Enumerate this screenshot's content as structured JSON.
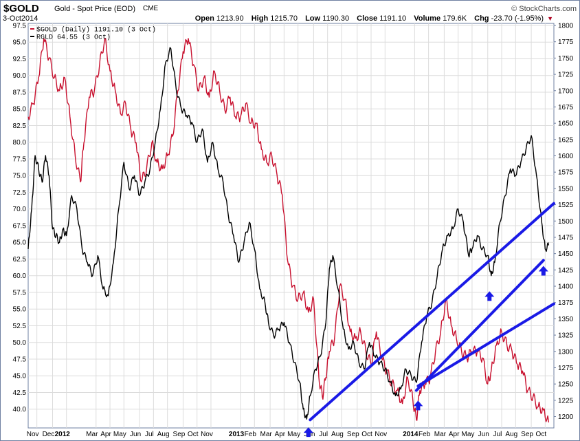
{
  "header": {
    "symbol": "$GOLD",
    "description": "Gold - Spot Price (EOD)",
    "exchange": "CME",
    "date": "3-Oct2014",
    "brand": "© StockCharts.com",
    "open_label": "Open",
    "open": "1213.90",
    "high_label": "High",
    "high": "1215.70",
    "low_label": "Low",
    "low": "1190.30",
    "close_label": "Close",
    "close": "1191.10",
    "volume_label": "Volume",
    "volume": "179.6K",
    "chg_label": "Chg",
    "chg": "-23.70 (-1.95%)"
  },
  "chart_data": {
    "type": "line",
    "legend_position": "top-left",
    "grid": true,
    "left_axis": {
      "ticks": [
        "97.5",
        "95.0",
        "92.5",
        "90.0",
        "87.5",
        "85.0",
        "82.5",
        "80.0",
        "77.5",
        "75.0",
        "72.5",
        "70.0",
        "67.5",
        "65.0",
        "62.5",
        "60.0",
        "57.5",
        "55.0",
        "52.5",
        "50.0",
        "47.5",
        "45.0",
        "42.5",
        "40.0"
      ],
      "range": [
        37.7,
        97.5
      ]
    },
    "right_axis": {
      "ticks": [
        "1800",
        "1775",
        "1750",
        "1725",
        "1700",
        "1675",
        "1650",
        "1625",
        "1600",
        "1575",
        "1550",
        "1525",
        "1500",
        "1475",
        "1450",
        "1425",
        "1400",
        "1375",
        "1350",
        "1325",
        "1300",
        "1275",
        "1250",
        "1225",
        "1200"
      ],
      "range": [
        1190,
        1800
      ]
    },
    "x_labels": [
      {
        "t": "Nov",
        "m": 2012.83
      },
      {
        "t": "Dec",
        "m": 2012.92
      },
      {
        "t": "2012",
        "m": 2013.0,
        "year": true
      },
      {
        "t": "Mar",
        "m": 2013.17
      },
      {
        "t": "Apr",
        "m": 2013.25
      },
      {
        "t": "May",
        "m": 2013.33
      },
      {
        "t": "Jun",
        "m": 2013.42
      },
      {
        "t": "Jul",
        "m": 2013.5
      },
      {
        "t": "Aug",
        "m": 2013.58
      },
      {
        "t": "Sep",
        "m": 2013.67
      },
      {
        "t": "Oct",
        "m": 2013.75
      },
      {
        "t": "Nov",
        "m": 2013.83
      },
      {
        "t": "2013",
        "m": 2014.0,
        "year": true
      },
      {
        "t": "Feb",
        "m": 2014.08
      },
      {
        "t": "Mar",
        "m": 2014.17
      },
      {
        "t": "Apr",
        "m": 2014.25
      },
      {
        "t": "May",
        "m": 2014.33
      },
      {
        "t": "Jun",
        "m": 2014.42
      },
      {
        "t": "Jul",
        "m": 2014.5
      },
      {
        "t": "Aug",
        "m": 2014.58
      },
      {
        "t": "Sep",
        "m": 2014.67
      },
      {
        "t": "Oct",
        "m": 2014.75
      },
      {
        "t": "Nov",
        "m": 2014.83
      },
      {
        "t": "2014",
        "m": 2015.0,
        "year": true
      },
      {
        "t": "Feb",
        "m": 2015.08
      },
      {
        "t": "Mar",
        "m": 2015.17
      },
      {
        "t": "Apr",
        "m": 2015.25
      },
      {
        "t": "May",
        "m": 2015.33
      },
      {
        "t": "Jun",
        "m": 2015.42
      },
      {
        "t": "Jul",
        "m": 2015.5
      },
      {
        "t": "Aug",
        "m": 2015.58
      },
      {
        "t": "Sep",
        "m": 2015.67
      },
      {
        "t": "Oct",
        "m": 2015.75
      }
    ],
    "x_range": [
      2012.78,
      2015.8
    ],
    "series": [
      {
        "name": "$GOLD (Daily) 1191.10 (3 Oct)",
        "color": "#c8102e",
        "axis": "right",
        "points": [
          [
            2012.78,
            1660
          ],
          [
            2012.81,
            1680
          ],
          [
            2012.84,
            1720
          ],
          [
            2012.87,
            1780
          ],
          [
            2012.9,
            1750
          ],
          [
            2012.93,
            1720
          ],
          [
            2012.96,
            1700
          ],
          [
            2012.99,
            1720
          ],
          [
            2013.02,
            1660
          ],
          [
            2013.05,
            1600
          ],
          [
            2013.08,
            1560
          ],
          [
            2013.1,
            1620
          ],
          [
            2013.13,
            1690
          ],
          [
            2013.16,
            1700
          ],
          [
            2013.19,
            1740
          ],
          [
            2013.22,
            1780
          ],
          [
            2013.25,
            1730
          ],
          [
            2013.28,
            1700
          ],
          [
            2013.31,
            1665
          ],
          [
            2013.34,
            1680
          ],
          [
            2013.37,
            1640
          ],
          [
            2013.4,
            1620
          ],
          [
            2013.43,
            1560
          ],
          [
            2013.46,
            1580
          ],
          [
            2013.49,
            1620
          ],
          [
            2013.52,
            1590
          ],
          [
            2013.55,
            1580
          ],
          [
            2013.58,
            1600
          ],
          [
            2013.61,
            1630
          ],
          [
            2013.64,
            1700
          ],
          [
            2013.67,
            1760
          ],
          [
            2013.7,
            1780
          ],
          [
            2013.73,
            1740
          ],
          [
            2013.76,
            1700
          ],
          [
            2013.79,
            1720
          ],
          [
            2013.82,
            1690
          ],
          [
            2013.85,
            1730
          ],
          [
            2013.88,
            1700
          ],
          [
            2013.91,
            1670
          ],
          [
            2013.94,
            1690
          ],
          [
            2013.97,
            1660
          ],
          [
            2014.0,
            1660
          ],
          [
            2014.03,
            1680
          ],
          [
            2014.06,
            1650
          ],
          [
            2014.09,
            1650
          ],
          [
            2014.12,
            1610
          ],
          [
            2014.15,
            1590
          ],
          [
            2014.18,
            1600
          ],
          [
            2014.21,
            1570
          ],
          [
            2014.24,
            1540
          ],
          [
            2014.27,
            1440
          ],
          [
            2014.3,
            1400
          ],
          [
            2014.33,
            1380
          ],
          [
            2014.36,
            1390
          ],
          [
            2014.39,
            1360
          ],
          [
            2014.42,
            1380
          ],
          [
            2014.45,
            1260
          ],
          [
            2014.47,
            1230
          ],
          [
            2014.49,
            1260
          ],
          [
            2014.51,
            1300
          ],
          [
            2014.54,
            1320
          ],
          [
            2014.57,
            1400
          ],
          [
            2014.6,
            1380
          ],
          [
            2014.63,
            1330
          ],
          [
            2014.66,
            1320
          ],
          [
            2014.69,
            1330
          ],
          [
            2014.72,
            1300
          ],
          [
            2014.75,
            1280
          ],
          [
            2014.78,
            1330
          ],
          [
            2014.81,
            1290
          ],
          [
            2014.84,
            1270
          ],
          [
            2014.87,
            1250
          ],
          [
            2014.9,
            1240
          ],
          [
            2014.93,
            1220
          ],
          [
            2014.96,
            1260
          ],
          [
            2014.99,
            1225
          ],
          [
            2015.01,
            1195
          ],
          [
            2015.03,
            1240
          ],
          [
            2015.06,
            1250
          ],
          [
            2015.09,
            1260
          ],
          [
            2015.12,
            1300
          ],
          [
            2015.15,
            1330
          ],
          [
            2015.18,
            1380
          ],
          [
            2015.21,
            1340
          ],
          [
            2015.24,
            1320
          ],
          [
            2015.27,
            1300
          ],
          [
            2015.3,
            1290
          ],
          [
            2015.33,
            1300
          ],
          [
            2015.36,
            1300
          ],
          [
            2015.39,
            1290
          ],
          [
            2015.42,
            1250
          ],
          [
            2015.44,
            1270
          ],
          [
            2015.47,
            1310
          ],
          [
            2015.5,
            1330
          ],
          [
            2015.53,
            1310
          ],
          [
            2015.56,
            1300
          ],
          [
            2015.59,
            1280
          ],
          [
            2015.62,
            1270
          ],
          [
            2015.65,
            1240
          ],
          [
            2015.68,
            1230
          ],
          [
            2015.71,
            1215
          ],
          [
            2015.74,
            1210
          ],
          [
            2015.77,
            1191.1
          ]
        ]
      },
      {
        "name": "RGLD 64.55 (3 Oct)",
        "color": "#000000",
        "axis": "left",
        "points": [
          [
            2012.78,
            64
          ],
          [
            2012.8,
            70
          ],
          [
            2012.82,
            78
          ],
          [
            2012.84,
            76
          ],
          [
            2012.86,
            74
          ],
          [
            2012.88,
            78
          ],
          [
            2012.9,
            75
          ],
          [
            2012.92,
            67
          ],
          [
            2012.94,
            66
          ],
          [
            2012.96,
            65
          ],
          [
            2012.98,
            67
          ],
          [
            2013.0,
            66
          ],
          [
            2013.03,
            72
          ],
          [
            2013.06,
            70
          ],
          [
            2013.09,
            64
          ],
          [
            2013.12,
            62
          ],
          [
            2013.15,
            60
          ],
          [
            2013.18,
            63
          ],
          [
            2013.21,
            58
          ],
          [
            2013.24,
            57
          ],
          [
            2013.27,
            62
          ],
          [
            2013.3,
            70
          ],
          [
            2013.33,
            77
          ],
          [
            2013.36,
            73
          ],
          [
            2013.39,
            75
          ],
          [
            2013.42,
            72
          ],
          [
            2013.45,
            74
          ],
          [
            2013.48,
            76
          ],
          [
            2013.51,
            80
          ],
          [
            2013.54,
            85
          ],
          [
            2013.57,
            92
          ],
          [
            2013.6,
            94
          ],
          [
            2013.63,
            88
          ],
          [
            2013.66,
            85
          ],
          [
            2013.69,
            84
          ],
          [
            2013.72,
            83
          ],
          [
            2013.75,
            80
          ],
          [
            2013.78,
            82
          ],
          [
            2013.81,
            77
          ],
          [
            2013.84,
            80
          ],
          [
            2013.87,
            76
          ],
          [
            2013.9,
            74
          ],
          [
            2013.93,
            69
          ],
          [
            2013.96,
            66
          ],
          [
            2013.99,
            62
          ],
          [
            2014.02,
            65
          ],
          [
            2014.05,
            68
          ],
          [
            2014.08,
            64
          ],
          [
            2014.11,
            58
          ],
          [
            2014.14,
            56
          ],
          [
            2014.16,
            53
          ],
          [
            2014.19,
            51
          ],
          [
            2014.22,
            52
          ],
          [
            2014.25,
            53
          ],
          [
            2014.28,
            50
          ],
          [
            2014.31,
            47
          ],
          [
            2014.34,
            44
          ],
          [
            2014.36,
            40
          ],
          [
            2014.38,
            38.5
          ],
          [
            2014.4,
            42
          ],
          [
            2014.43,
            46
          ],
          [
            2014.46,
            48
          ],
          [
            2014.49,
            53
          ],
          [
            2014.51,
            61
          ],
          [
            2014.53,
            63
          ],
          [
            2014.56,
            58
          ],
          [
            2014.59,
            52
          ],
          [
            2014.62,
            49
          ],
          [
            2014.65,
            50
          ],
          [
            2014.68,
            47
          ],
          [
            2014.71,
            46
          ],
          [
            2014.74,
            50
          ],
          [
            2014.77,
            48
          ],
          [
            2014.8,
            47
          ],
          [
            2014.83,
            46
          ],
          [
            2014.86,
            44
          ],
          [
            2014.89,
            42
          ],
          [
            2014.92,
            43
          ],
          [
            2014.95,
            46
          ],
          [
            2014.98,
            45
          ],
          [
            2015.01,
            44
          ],
          [
            2015.04,
            50
          ],
          [
            2015.07,
            54
          ],
          [
            2015.1,
            56
          ],
          [
            2015.13,
            60
          ],
          [
            2015.16,
            64
          ],
          [
            2015.19,
            66
          ],
          [
            2015.22,
            67
          ],
          [
            2015.25,
            70
          ],
          [
            2015.28,
            68
          ],
          [
            2015.31,
            63
          ],
          [
            2015.33,
            64
          ],
          [
            2015.36,
            66
          ],
          [
            2015.39,
            64
          ],
          [
            2015.42,
            63
          ],
          [
            2015.44,
            60
          ],
          [
            2015.46,
            62
          ],
          [
            2015.49,
            68
          ],
          [
            2015.52,
            72
          ],
          [
            2015.55,
            76
          ],
          [
            2015.58,
            75
          ],
          [
            2015.61,
            77
          ],
          [
            2015.64,
            79
          ],
          [
            2015.67,
            81
          ],
          [
            2015.7,
            75
          ],
          [
            2015.73,
            68
          ],
          [
            2015.75,
            64
          ],
          [
            2015.77,
            64.55
          ]
        ]
      }
    ],
    "trendlines": [
      {
        "axis": "right",
        "from": [
          2014.4,
          1195
        ],
        "to": [
          2015.8,
          1527
        ]
      },
      {
        "axis": "right",
        "from": [
          2015.02,
          1247
        ],
        "to": [
          2015.8,
          1373
        ]
      },
      {
        "axis": "left",
        "from": [
          2015.01,
          42.8
        ],
        "to": [
          2015.74,
          62.3
        ]
      }
    ],
    "arrows": [
      {
        "axis": "left",
        "x": 2014.39,
        "y": 38.3
      },
      {
        "axis": "left",
        "x": 2015.02,
        "y": 42.3
      },
      {
        "axis": "left",
        "x": 2015.43,
        "y": 58.7
      },
      {
        "axis": "left",
        "x": 2015.74,
        "y": 62.5
      }
    ]
  }
}
